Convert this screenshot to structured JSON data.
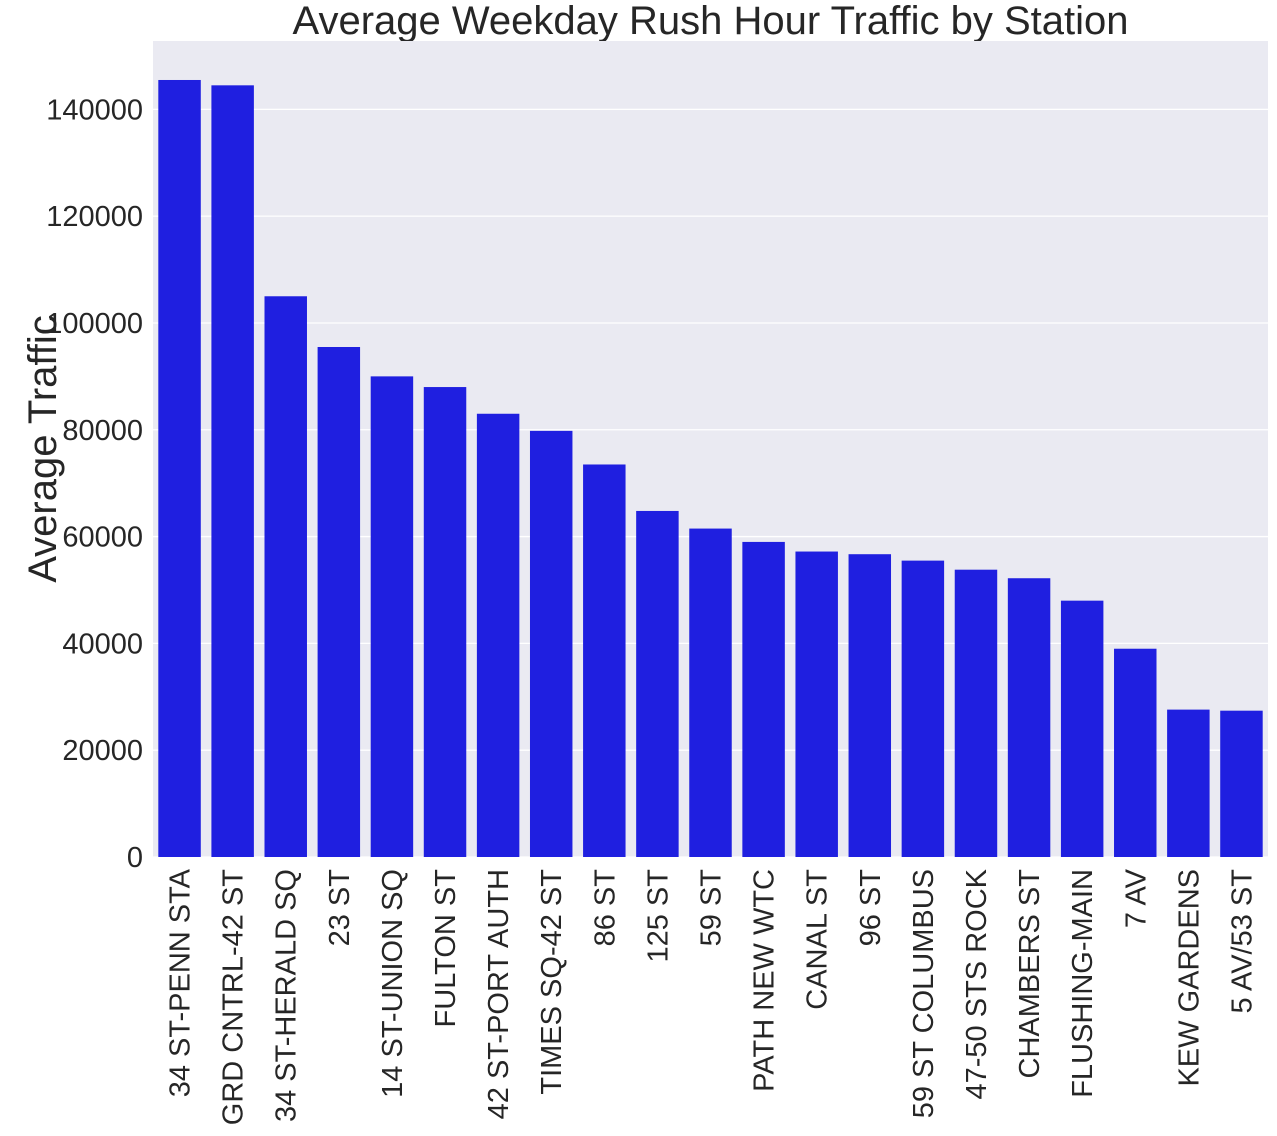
{
  "chart_data": {
    "type": "bar",
    "title": "Average Weekday Rush Hour Traffic by Station",
    "xlabel": "",
    "ylabel": "Average Traffic",
    "categories": [
      "34 ST-PENN STA",
      "GRD CNTRL-42 ST",
      "34 ST-HERALD SQ",
      "23 ST",
      "14 ST-UNION SQ",
      "FULTON ST",
      "42 ST-PORT AUTH",
      "TIMES SQ-42 ST",
      "86 ST",
      "125 ST",
      "59 ST",
      "PATH NEW WTC",
      "CANAL ST",
      "96 ST",
      "59 ST COLUMBUS",
      "47-50 STS ROCK",
      "CHAMBERS ST",
      "FLUSHING-MAIN",
      "7 AV",
      "KEW GARDENS",
      "5 AV/53 ST"
    ],
    "values": [
      145500,
      144500,
      105000,
      95500,
      90000,
      88000,
      83000,
      79800,
      73500,
      64800,
      61500,
      59000,
      57200,
      56700,
      55500,
      53800,
      52200,
      48000,
      39000,
      27600,
      27400
    ],
    "yticks": [
      "0",
      "20000",
      "40000",
      "60000",
      "80000",
      "100000",
      "120000",
      "140000"
    ],
    "ylim": [
      0,
      152800
    ],
    "grid": true,
    "bar_color": "#1f1fe0",
    "background_color": "#eaeaf2",
    "grid_color": "#ffffff"
  }
}
